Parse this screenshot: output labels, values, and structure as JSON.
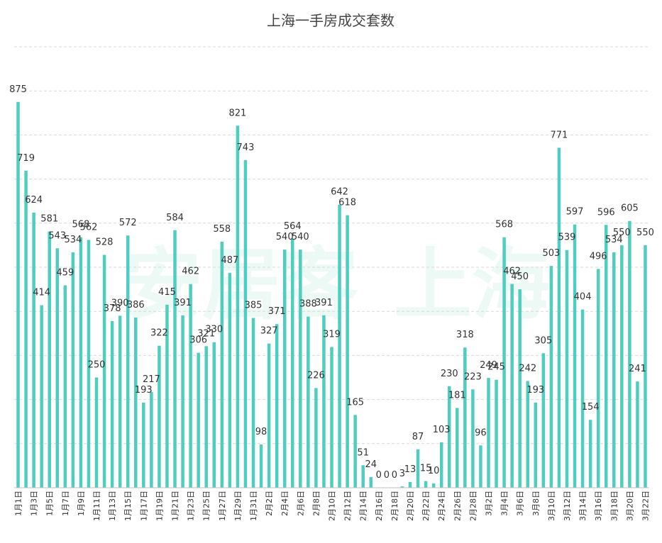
{
  "chart_data": {
    "type": "bar",
    "title": "上海一手房成交套数",
    "watermark": {
      "left": "安居客",
      "right": "上海"
    },
    "colors": {
      "bar": "#4fcdbf",
      "grid": "#d9d9d9",
      "axis": "#bfbfbf"
    },
    "ylim": [
      0,
      1000
    ],
    "ygrid_step": 100,
    "categories": [
      "1月1日",
      "1月2日",
      "1月3日",
      "1月4日",
      "1月5日",
      "1月6日",
      "1月7日",
      "1月8日",
      "1月9日",
      "1月10日",
      "1月11日",
      "1月12日",
      "1月13日",
      "1月14日",
      "1月15日",
      "1月16日",
      "1月17日",
      "1月18日",
      "1月19日",
      "1月20日",
      "1月21日",
      "1月22日",
      "1月23日",
      "1月24日",
      "1月25日",
      "1月26日",
      "1月27日",
      "1月28日",
      "1月29日",
      "1月30日",
      "1月31日",
      "2月1日",
      "2月2日",
      "2月3日",
      "2月4日",
      "2月5日",
      "2月6日",
      "2月7日",
      "2月8日",
      "2月9日",
      "2月10日",
      "2月11日",
      "2月12日",
      "2月13日",
      "2月14日",
      "2月15日",
      "2月16日",
      "2月17日",
      "2月18日",
      "2月19日",
      "2月20日",
      "2月21日",
      "2月22日",
      "2月23日",
      "2月24日",
      "2月25日",
      "2月26日",
      "2月27日",
      "2月28日",
      "3月1日",
      "3月2日",
      "3月3日",
      "3月4日",
      "3月5日",
      "3月6日",
      "3月7日",
      "3月8日",
      "3月9日",
      "3月10日",
      "3月11日",
      "3月12日",
      "3月13日",
      "3月14日",
      "3月15日",
      "3月16日",
      "3月17日",
      "3月18日",
      "3月19日",
      "3月20日",
      "3月21日",
      "3月22日"
    ],
    "values": [
      875,
      719,
      624,
      414,
      581,
      543,
      459,
      534,
      568,
      562,
      250,
      528,
      378,
      390,
      572,
      386,
      193,
      217,
      322,
      415,
      584,
      391,
      462,
      306,
      321,
      330,
      558,
      487,
      821,
      743,
      385,
      98,
      327,
      371,
      540,
      564,
      540,
      388,
      226,
      391,
      319,
      642,
      618,
      165,
      51,
      24,
      0,
      0,
      0,
      3,
      13,
      87,
      15,
      10,
      103,
      230,
      181,
      318,
      223,
      96,
      249,
      245,
      568,
      462,
      450,
      242,
      193,
      305,
      503,
      771,
      539,
      597,
      404,
      154,
      496,
      596,
      534,
      550,
      605,
      241,
      550
    ],
    "xlabel": "",
    "ylabel": ""
  }
}
